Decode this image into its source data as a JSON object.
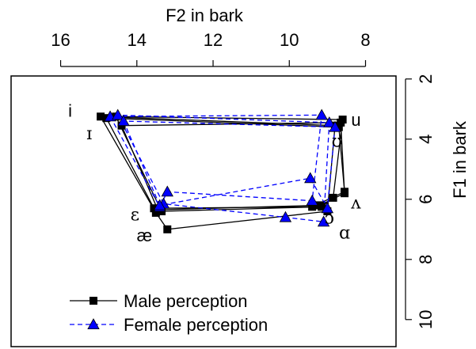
{
  "chart_data": {
    "type": "line",
    "x_label": "F2 in bark",
    "y_label": "F1 in bark",
    "x_ticks": [
      "16",
      "14",
      "12",
      "10",
      "8"
    ],
    "y_ticks": [
      "2",
      "4",
      "6",
      "8",
      "10"
    ],
    "x_tick_values": [
      16,
      14,
      12,
      10,
      8
    ],
    "y_tick_values": [
      2,
      4,
      6,
      8,
      10
    ],
    "x_range": [
      17.3,
      7.2
    ],
    "y_range": [
      1.9,
      10.9
    ],
    "x_reversed": true,
    "y_reversed": true,
    "grid": false,
    "legend_position": "bottom-left",
    "colors": {
      "male": "#000000",
      "female_line": "#0000ff",
      "female_marker": "#0000ff"
    },
    "series": [
      {
        "name": "Male perception",
        "line_style": "solid",
        "marker": "square",
        "polygons": [
          [
            [
              14.95,
              3.25
            ],
            [
              13.5,
              6.45
            ],
            [
              13.2,
              7.0
            ],
            [
              9.0,
              6.4
            ],
            [
              8.8,
              3.55
            ],
            [
              14.95,
              3.25
            ]
          ],
          [
            [
              14.55,
              3.25
            ],
            [
              13.35,
              6.4
            ],
            [
              9.15,
              6.25
            ],
            [
              8.85,
              5.95
            ],
            [
              8.6,
              3.35
            ],
            [
              14.55,
              3.25
            ]
          ],
          [
            [
              14.4,
              3.55
            ],
            [
              13.45,
              6.35
            ],
            [
              9.2,
              6.2
            ],
            [
              8.55,
              5.8
            ],
            [
              8.65,
              3.45
            ],
            [
              14.4,
              3.55
            ]
          ],
          [
            [
              14.8,
              3.3
            ],
            [
              13.55,
              6.3
            ],
            [
              9.4,
              6.25
            ],
            [
              8.55,
              5.75
            ],
            [
              8.7,
              3.6
            ],
            [
              14.8,
              3.3
            ]
          ]
        ]
      },
      {
        "name": "Female perception",
        "line_style": "dashed",
        "marker": "triangle",
        "polygons": [
          [
            [
              14.7,
              3.25
            ],
            [
              13.4,
              6.25
            ],
            [
              13.2,
              5.75
            ],
            [
              9.4,
              6.05
            ],
            [
              9.15,
              3.2
            ],
            [
              14.7,
              3.25
            ]
          ],
          [
            [
              14.5,
              3.2
            ],
            [
              13.3,
              6.15
            ],
            [
              10.1,
              6.6
            ],
            [
              9.1,
              6.75
            ],
            [
              8.95,
              3.45
            ],
            [
              14.5,
              3.2
            ]
          ],
          [
            [
              14.35,
              3.4
            ],
            [
              13.4,
              6.2
            ],
            [
              9.45,
              5.3
            ],
            [
              9.0,
              6.3
            ],
            [
              8.8,
              3.6
            ],
            [
              14.35,
              3.4
            ]
          ]
        ]
      }
    ],
    "vowel_labels": [
      {
        "text": "i",
        "x": 15.75,
        "y": 3.1,
        "style": "sans"
      },
      {
        "text": "ɪ",
        "x": 15.25,
        "y": 3.85,
        "style": "serif"
      },
      {
        "text": "ε",
        "x": 14.05,
        "y": 6.55,
        "style": "serif"
      },
      {
        "text": "æ",
        "x": 13.8,
        "y": 7.25,
        "style": "sans"
      },
      {
        "text": "u",
        "x": 8.25,
        "y": 3.4,
        "style": "sans"
      },
      {
        "text": "ʊ",
        "x": 8.75,
        "y": 4.1,
        "style": "serif"
      },
      {
        "text": "ʌ",
        "x": 8.25,
        "y": 6.15,
        "style": "serif"
      },
      {
        "text": "ɔ",
        "x": 8.95,
        "y": 6.65,
        "style": "serif"
      },
      {
        "text": "ɑ",
        "x": 8.55,
        "y": 7.15,
        "style": "serif"
      }
    ],
    "legend": [
      {
        "label": "Male perception",
        "series": 0
      },
      {
        "label": "Female perception",
        "series": 1
      }
    ]
  }
}
